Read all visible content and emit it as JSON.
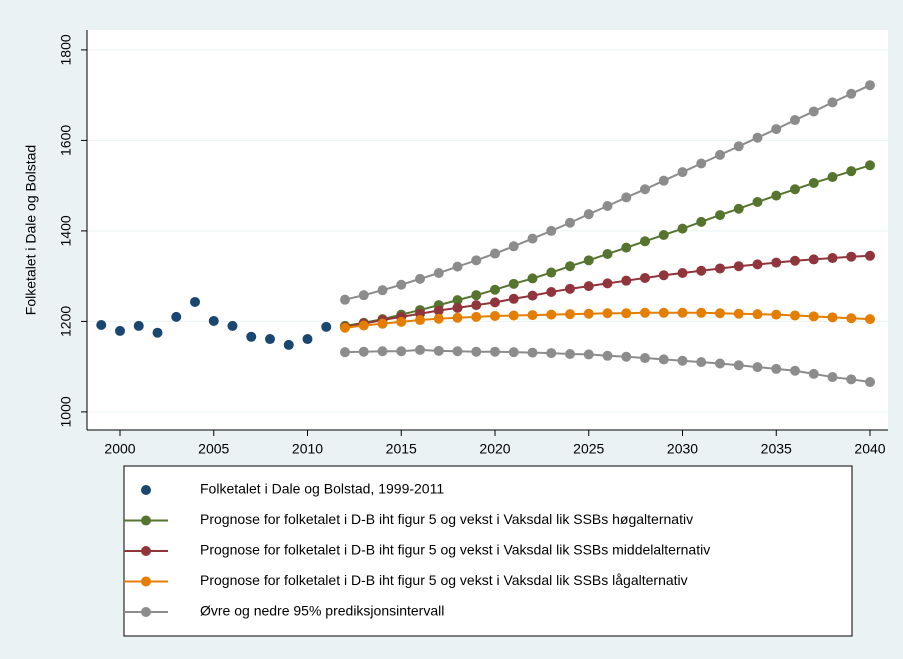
{
  "chart_data": {
    "type": "line",
    "y_label": "Folketalet i Dale og Bolstad",
    "xlim": [
      1998.24,
      2040.96
    ],
    "xticks": [
      2000,
      2005,
      2010,
      2015,
      2020,
      2025,
      2030,
      2035,
      2040
    ],
    "ylim": [
      960,
      1844
    ],
    "yticks": [
      1000,
      1200,
      1400,
      1600,
      1800
    ],
    "grid": true,
    "series": [
      {
        "name": "Folketalet i Dale og Bolstad, 1999-2011",
        "color": "#1a476f",
        "line": false,
        "x": [
          1999,
          2000,
          2001,
          2002,
          2003,
          2004,
          2005,
          2006,
          2007,
          2008,
          2009,
          2010,
          2011
        ],
        "values": [
          1192,
          1179,
          1190,
          1175,
          1210,
          1243,
          1201,
          1190,
          1166,
          1161,
          1148,
          1161,
          1188
        ]
      },
      {
        "name": "Prognose for folketalet i D-B iht figur 5 og vekst i Vaksdal lik SSBs høgalternativ",
        "color": "#55752f",
        "line": true,
        "x": [
          2012,
          2013,
          2014,
          2015,
          2016,
          2017,
          2018,
          2019,
          2020,
          2021,
          2022,
          2023,
          2024,
          2025,
          2026,
          2027,
          2028,
          2029,
          2030,
          2031,
          2032,
          2033,
          2034,
          2035,
          2036,
          2037,
          2038,
          2039,
          2040
        ],
        "values": [
          1190,
          1197,
          1205,
          1215,
          1225,
          1236,
          1247,
          1258,
          1270,
          1283,
          1295,
          1308,
          1322,
          1335,
          1349,
          1363,
          1377,
          1391,
          1405,
          1420,
          1435,
          1449,
          1464,
          1478,
          1492,
          1506,
          1519,
          1532,
          1545
        ]
      },
      {
        "name": "Prognose for folketalet i D-B iht figur 5 og vekst i Vaksdal lik SSBs middelalternativ",
        "color": "#90353b",
        "line": true,
        "x": [
          2012,
          2013,
          2014,
          2015,
          2016,
          2017,
          2018,
          2019,
          2020,
          2021,
          2022,
          2023,
          2024,
          2025,
          2026,
          2027,
          2028,
          2029,
          2030,
          2031,
          2032,
          2033,
          2034,
          2035,
          2036,
          2037,
          2038,
          2039,
          2040
        ],
        "values": [
          1188,
          1195,
          1203,
          1210,
          1217,
          1224,
          1230,
          1236,
          1242,
          1250,
          1257,
          1265,
          1272,
          1278,
          1284,
          1290,
          1296,
          1302,
          1307,
          1312,
          1317,
          1322,
          1326,
          1330,
          1334,
          1337,
          1340,
          1343,
          1345
        ]
      },
      {
        "name": "Prognose for folketalet i D-B iht figur 5 og vekst i Vaksdal lik SSBs lågalternativ",
        "color": "#e37e00",
        "line": true,
        "x": [
          2012,
          2013,
          2014,
          2015,
          2016,
          2017,
          2018,
          2019,
          2020,
          2021,
          2022,
          2023,
          2024,
          2025,
          2026,
          2027,
          2028,
          2029,
          2030,
          2031,
          2032,
          2033,
          2034,
          2035,
          2036,
          2037,
          2038,
          2039,
          2040
        ],
        "values": [
          1186,
          1191,
          1195,
          1199,
          1203,
          1206,
          1208,
          1210,
          1212,
          1213,
          1214,
          1215,
          1216,
          1217,
          1218,
          1218,
          1219,
          1219,
          1219,
          1219,
          1218,
          1217,
          1216,
          1215,
          1213,
          1211,
          1209,
          1207,
          1205
        ]
      },
      {
        "name": "Øvre og nedre 95% prediksjonsintervall",
        "color": "#8c8c8c",
        "line": true,
        "x": [
          2012,
          2013,
          2014,
          2015,
          2016,
          2017,
          2018,
          2019,
          2020,
          2021,
          2022,
          2023,
          2024,
          2025,
          2026,
          2027,
          2028,
          2029,
          2030,
          2031,
          2032,
          2033,
          2034,
          2035,
          2036,
          2037,
          2038,
          2039,
          2040
        ],
        "values": [
          1248,
          1258,
          1269,
          1281,
          1294,
          1307,
          1321,
          1335,
          1350,
          1366,
          1383,
          1400,
          1418,
          1437,
          1455,
          1474,
          1492,
          1511,
          1530,
          1549,
          1568,
          1587,
          1606,
          1625,
          1645,
          1664,
          1684,
          1703,
          1722
        ],
        "lower": [
          1132,
          1133,
          1134,
          1134,
          1137,
          1135,
          1134,
          1133,
          1133,
          1132,
          1131,
          1130,
          1128,
          1127,
          1124,
          1122,
          1119,
          1116,
          1113,
          1110,
          1107,
          1103,
          1099,
          1095,
          1091,
          1084,
          1077,
          1072,
          1066
        ]
      }
    ]
  }
}
